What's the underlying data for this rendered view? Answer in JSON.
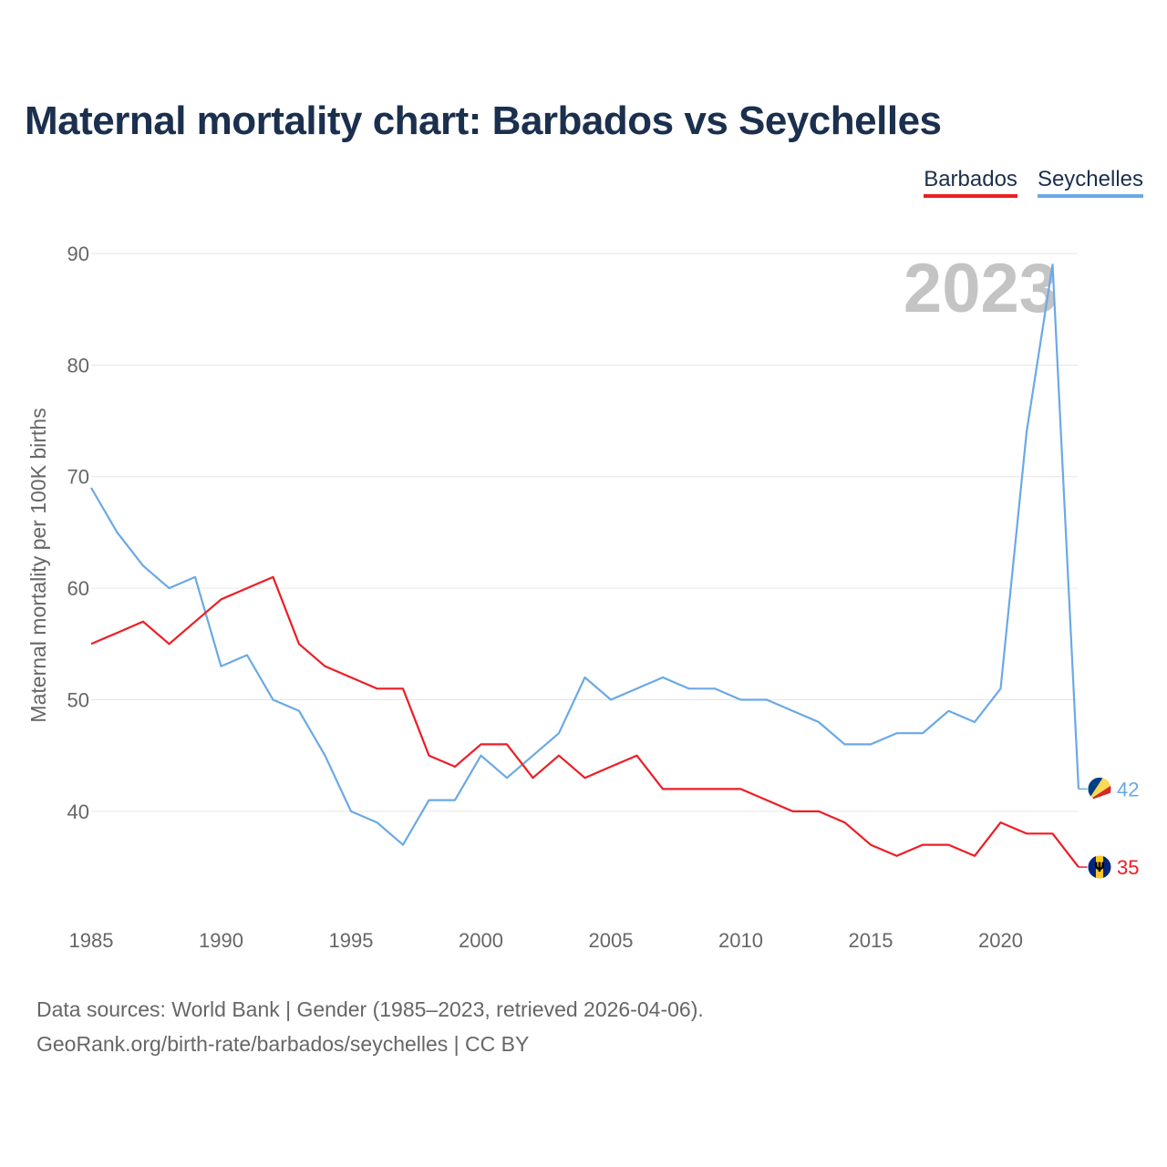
{
  "page": {
    "title": "Maternal mortality chart: Barbados vs Seychelles",
    "source_line": "Data sources: World Bank | Gender (1985–2023, retrieved 2026-04-06).",
    "attribution_line": "GeoRank.org/birth-rate/barbados/seychelles | CC BY"
  },
  "chart_data": {
    "type": "line",
    "title": "Maternal mortality chart: Barbados vs Seychelles",
    "xlabel": "",
    "ylabel": "Maternal mortality per 100K births",
    "year_watermark": "2023",
    "x": [
      1985,
      1986,
      1987,
      1988,
      1989,
      1990,
      1991,
      1992,
      1993,
      1994,
      1995,
      1996,
      1997,
      1998,
      1999,
      2000,
      2001,
      2002,
      2003,
      2004,
      2005,
      2006,
      2007,
      2008,
      2009,
      2010,
      2011,
      2012,
      2013,
      2014,
      2015,
      2016,
      2017,
      2018,
      2019,
      2020,
      2021,
      2022,
      2023
    ],
    "xlim": [
      1985,
      2023
    ],
    "ylim": [
      31,
      90
    ],
    "x_ticks": [
      "1985",
      "1990",
      "1995",
      "2000",
      "2005",
      "2010",
      "2015",
      "2020"
    ],
    "y_ticks": [
      "40",
      "50",
      "60",
      "70",
      "80",
      "90"
    ],
    "grid": true,
    "legend_position": "top-right",
    "series": [
      {
        "name": "Barbados",
        "color": "#ee1c25",
        "end_label": "35",
        "flag_icon": "barbados-flag-icon",
        "values": [
          55,
          56,
          57,
          55,
          57,
          59,
          60,
          61,
          55,
          53,
          52,
          51,
          51,
          45,
          44,
          46,
          46,
          43,
          45,
          43,
          44,
          45,
          42,
          42,
          42,
          42,
          41,
          40,
          40,
          39,
          37,
          36,
          37,
          37,
          36,
          39,
          38,
          38,
          35
        ]
      },
      {
        "name": "Seychelles",
        "color": "#6aa9e5",
        "end_label": "42",
        "flag_icon": "seychelles-flag-icon",
        "values": [
          69,
          65,
          62,
          60,
          61,
          53,
          54,
          50,
          49,
          45,
          40,
          39,
          37,
          41,
          41,
          45,
          43,
          45,
          47,
          52,
          50,
          51,
          52,
          51,
          51,
          50,
          50,
          49,
          48,
          46,
          46,
          47,
          47,
          49,
          48,
          51,
          74,
          89,
          42
        ]
      }
    ]
  }
}
